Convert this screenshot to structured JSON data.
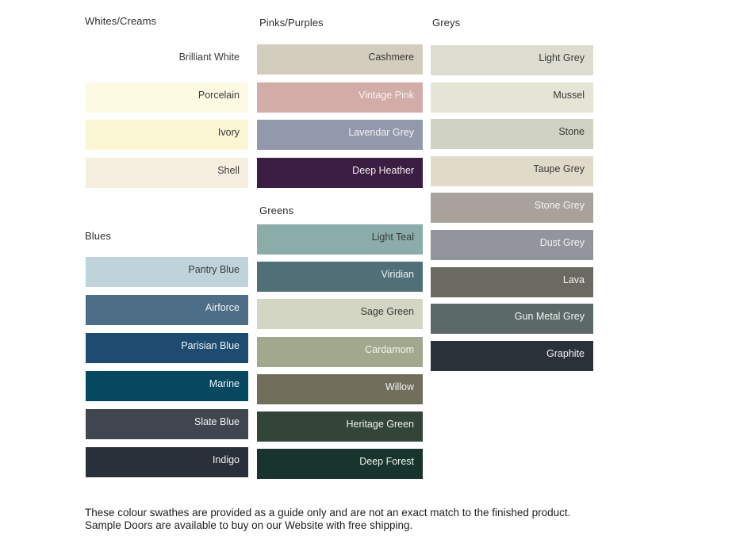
{
  "page": {
    "footnote": "These colour swathes are provided as a guide only and are not an exact match to the finished product.  Sample Doors are available to buy on our Website with free shipping."
  },
  "groups": {
    "whites_creams": {
      "title": "Whites/Creams",
      "swatches": [
        {
          "name": "Brilliant White",
          "color": "#ffffff",
          "fg": "#3a3a3a"
        },
        {
          "name": "Porcelain",
          "color": "#fdfae4",
          "fg": "#3a3a3a"
        },
        {
          "name": "Ivory",
          "color": "#faf5d3",
          "fg": "#3a3a3a"
        },
        {
          "name": "Shell",
          "color": "#f6eede",
          "fg": "#3a3a3a"
        }
      ]
    },
    "pinks_purples": {
      "title": "Pinks/Purples",
      "swatches": [
        {
          "name": "Cashmere",
          "color": "#d2cdbd",
          "fg": "#3a3a3a"
        },
        {
          "name": "Vintage Pink",
          "color": "#d2aca7",
          "fg": "#f6f1f0"
        },
        {
          "name": "Lavendar Grey",
          "color": "#9399ac",
          "fg": "#f4f4f6"
        },
        {
          "name": "Deep Heather",
          "color": "#3b1e42",
          "fg": "#f1edf2"
        }
      ]
    },
    "greys": {
      "title": "Greys",
      "swatches": [
        {
          "name": "Light Grey",
          "color": "#dcdcd0",
          "fg": "#3a3a3a"
        },
        {
          "name": "Mussel",
          "color": "#e4e5d4",
          "fg": "#3a3a3a"
        },
        {
          "name": "Stone",
          "color": "#cfd2c0",
          "fg": "#3a3a3a"
        },
        {
          "name": "Taupe Grey",
          "color": "#e0dac8",
          "fg": "#3a3a3a"
        },
        {
          "name": "Stone Grey",
          "color": "#a8a29a",
          "fg": "#f5f4f2"
        },
        {
          "name": "Dust Grey",
          "color": "#93959c",
          "fg": "#f4f4f5"
        },
        {
          "name": "Lava",
          "color": "#6b6a60",
          "fg": "#f3f3f1"
        },
        {
          "name": "Gun Metal Grey",
          "color": "#5b6a67",
          "fg": "#f2f4f3"
        },
        {
          "name": "Graphite",
          "color": "#2a3138",
          "fg": "#f2f3f4"
        }
      ]
    },
    "blues": {
      "title": "Blues",
      "swatches": [
        {
          "name": "Pantry Blue",
          "color": "#bed3da",
          "fg": "#3a3a3a"
        },
        {
          "name": "Airforce",
          "color": "#4e6d87",
          "fg": "#f2f4f6"
        },
        {
          "name": "Parisian Blue",
          "color": "#1d4c70",
          "fg": "#f0f3f6"
        },
        {
          "name": "Marine",
          "color": "#06485f",
          "fg": "#eff4f6"
        },
        {
          "name": "Slate Blue",
          "color": "#40454f",
          "fg": "#f2f2f3"
        },
        {
          "name": "Indigo",
          "color": "#2a303a",
          "fg": "#f1f2f3"
        }
      ]
    },
    "greens": {
      "title": "Greens",
      "swatches": [
        {
          "name": "Light Teal",
          "color": "#8bada9",
          "fg": "#3a3a3a"
        },
        {
          "name": "Viridian",
          "color": "#507077",
          "fg": "#f0f3f4"
        },
        {
          "name": "Sage Green",
          "color": "#d2d6c2",
          "fg": "#3a3a3a"
        },
        {
          "name": "Cardamom",
          "color": "#a0a88d",
          "fg": "#f4f5f1"
        },
        {
          "name": "Willow",
          "color": "#716f5c",
          "fg": "#f3f3f0"
        },
        {
          "name": "Heritage Green",
          "color": "#334438",
          "fg": "#f0f3f1"
        },
        {
          "name": "Deep Forest",
          "color": "#17352c",
          "fg": "#eff3f1"
        }
      ]
    }
  }
}
